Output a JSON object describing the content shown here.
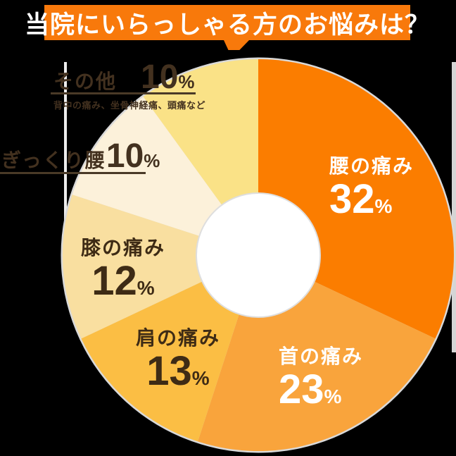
{
  "header": {
    "title": "当院にいらっしゃる方のお悩みは？",
    "banner_color": "#F8790B"
  },
  "chart_data": {
    "type": "pie",
    "style": "donut",
    "title": "当院にいらっしゃる方のお悩みは？",
    "direction": "clockwise",
    "start_angle_deg": 0,
    "percent_sign": "%",
    "hole_color": "#FFFFFF",
    "rim_color": "#D9D9D9",
    "background_color": "#000000",
    "segments": [
      {
        "label": "腰の痛み",
        "value": 32,
        "color": "#FB7D00",
        "label_color": "#FFFFFF"
      },
      {
        "label": "首の痛み",
        "value": 23,
        "color": "#F9A43C",
        "label_color": "#FFFFFF"
      },
      {
        "label": "肩の痛み",
        "value": 13,
        "color": "#FBBE44",
        "label_color": "#3E2B15"
      },
      {
        "label": "膝の痛み",
        "value": 12,
        "color": "#F9DFA0",
        "label_color": "#3E2B15"
      },
      {
        "label": "ぎっくり腰",
        "value": 10,
        "color": "#FCF1DA",
        "label_color": "#43311F"
      },
      {
        "label": "その他",
        "value": 10,
        "color": "#FAE287",
        "label_color": "#43311F",
        "note": "背中の痛み、坐骨神経痛、頭痛など"
      }
    ]
  }
}
